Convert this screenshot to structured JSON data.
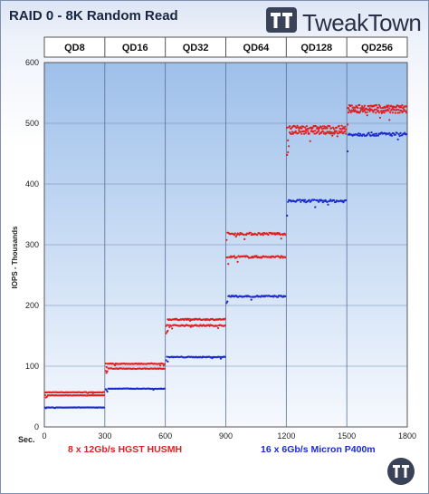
{
  "logo": {
    "text": "TweakTown"
  },
  "chart_data": {
    "type": "scatter",
    "title": "RAID 0 - 8K Random Read",
    "ylabel": "IOPS - Thousands",
    "xlabel": "Sec.",
    "xlim": [
      0,
      1800
    ],
    "ylim": [
      0,
      600
    ],
    "x_ticks": [
      0,
      300,
      600,
      900,
      1200,
      1500,
      1800
    ],
    "y_ticks": [
      0,
      100,
      200,
      300,
      400,
      500,
      600
    ],
    "grid": true,
    "phases": [
      {
        "label": "QD8",
        "range": [
          0,
          300
        ]
      },
      {
        "label": "QD16",
        "range": [
          300,
          600
        ]
      },
      {
        "label": "QD32",
        "range": [
          600,
          900
        ]
      },
      {
        "label": "QD64",
        "range": [
          900,
          1200
        ]
      },
      {
        "label": "QD128",
        "range": [
          1200,
          1500
        ]
      },
      {
        "label": "QD256",
        "range": [
          1500,
          1800
        ]
      }
    ],
    "legend_placement": "bottom",
    "series": [
      {
        "name": "8 x 12Gb/s HGST HUSMH",
        "color": "#e02020",
        "bands": [
          {
            "range": [
              0,
              300
            ],
            "levels": [
              57,
              52
            ]
          },
          {
            "range": [
              300,
              600
            ],
            "levels": [
              104,
              96
            ]
          },
          {
            "range": [
              600,
              900
            ],
            "levels": [
              177,
              167
            ]
          },
          {
            "range": [
              900,
              1200
            ],
            "levels": [
              318,
              280
            ]
          },
          {
            "range": [
              1200,
              1500
            ],
            "levels": [
              493,
              485
            ]
          },
          {
            "range": [
              1500,
              1800
            ],
            "levels": [
              527,
              520
            ]
          }
        ]
      },
      {
        "name": "16 x 6Gb/s Micron P400m",
        "color": "#1a2ad0",
        "bands": [
          {
            "range": [
              0,
              300
            ],
            "levels": [
              32
            ]
          },
          {
            "range": [
              300,
              600
            ],
            "levels": [
              63
            ]
          },
          {
            "range": [
              600,
              900
            ],
            "levels": [
              115
            ]
          },
          {
            "range": [
              900,
              1200
            ],
            "levels": [
              215
            ]
          },
          {
            "range": [
              1200,
              1500
            ],
            "levels": [
              372
            ]
          },
          {
            "range": [
              1500,
              1800
            ],
            "levels": [
              482
            ]
          }
        ]
      }
    ]
  }
}
